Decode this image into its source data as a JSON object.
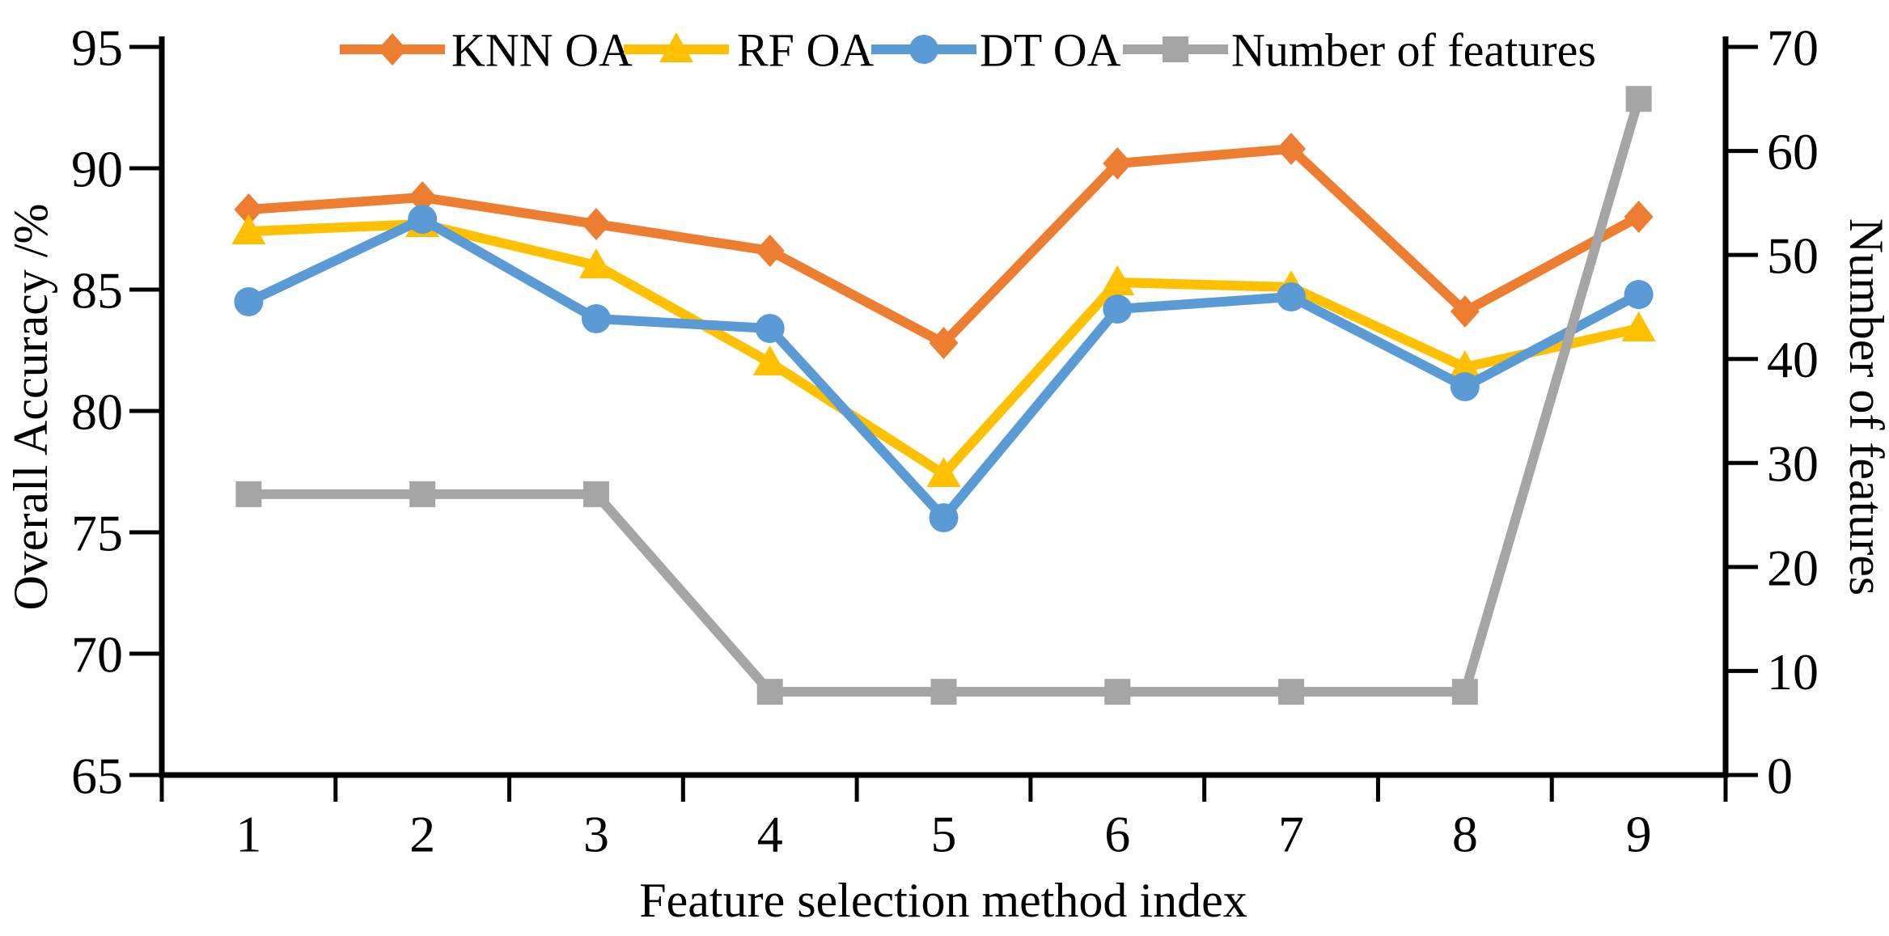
{
  "figure": {
    "background": "#ffffff",
    "axis_color": "#000000",
    "text_color": "#000000"
  },
  "legend": {
    "items": [
      {
        "label": "KNN OA",
        "color": "#ED7D31",
        "marker": "diamond"
      },
      {
        "label": "RF OA",
        "color": "#FFC000",
        "marker": "triangle"
      },
      {
        "label": "DT OA",
        "color": "#5B9BD5",
        "marker": "circle"
      },
      {
        "label": "Number of features",
        "color": "#A5A5A5",
        "marker": "square"
      }
    ]
  },
  "chart_data": {
    "type": "line",
    "x": [
      1,
      2,
      3,
      4,
      5,
      6,
      7,
      8,
      9
    ],
    "series": [
      {
        "name": "KNN OA",
        "yaxis": "left",
        "color": "#ED7D31",
        "marker": "diamond",
        "values": [
          88.3,
          88.8,
          87.7,
          86.6,
          82.8,
          90.2,
          90.8,
          84.1,
          88.0
        ]
      },
      {
        "name": "RF OA",
        "yaxis": "left",
        "color": "#FFC000",
        "marker": "triangle",
        "values": [
          87.4,
          87.7,
          86.0,
          82.0,
          77.4,
          85.3,
          85.1,
          81.8,
          83.4
        ]
      },
      {
        "name": "DT OA",
        "yaxis": "left",
        "color": "#5B9BD5",
        "marker": "circle",
        "values": [
          84.5,
          87.9,
          83.8,
          83.4,
          75.6,
          84.2,
          84.7,
          81.0,
          84.8
        ]
      },
      {
        "name": "Number of features",
        "yaxis": "right",
        "color": "#A5A5A5",
        "marker": "square",
        "values": [
          27,
          27,
          27,
          8,
          8,
          8,
          8,
          8,
          65
        ]
      }
    ],
    "title": "",
    "xlabel": "Feature selection method index",
    "ylabel_left": "Overall Accuracy /%",
    "ylabel_right": "Number of features",
    "ylim_left": [
      65,
      95
    ],
    "yticks_left": [
      65,
      70,
      75,
      80,
      85,
      90,
      95
    ],
    "ylim_right": [
      0,
      70
    ],
    "yticks_right": [
      0,
      10,
      20,
      30,
      40,
      50,
      60,
      70
    ],
    "grid": false,
    "legend_position": "top-inside"
  }
}
